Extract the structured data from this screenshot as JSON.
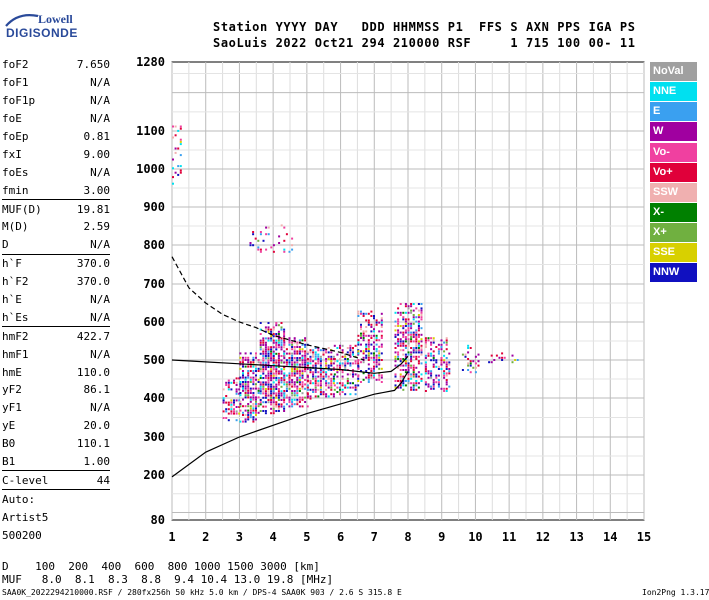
{
  "logo": {
    "line1": "Lowell",
    "line2": "DIGISONDE"
  },
  "header": {
    "row1": "Station YYYY DAY   DDD HHMMSS P1  FFS S AXN PPS IGA PS",
    "row2": "SaoLuis 2022 Oct21 294 210000 RSF     1 715 100 00- 11"
  },
  "params": [
    {
      "k": "foF2",
      "v": "7.650"
    },
    {
      "k": "foF1",
      "v": "N/A"
    },
    {
      "k": "foF1p",
      "v": "N/A"
    },
    {
      "k": "foE",
      "v": "N/A"
    },
    {
      "k": "foEp",
      "v": "0.81"
    },
    {
      "k": "fxI",
      "v": "9.00"
    },
    {
      "k": "foEs",
      "v": "N/A"
    },
    {
      "k": "fmin",
      "v": "3.00"
    },
    {
      "k": "MUF(D)",
      "v": "19.81",
      "sep": true
    },
    {
      "k": "M(D)",
      "v": "2.59"
    },
    {
      "k": "D",
      "v": "N/A"
    },
    {
      "k": "h`F",
      "v": "370.0",
      "sep": true
    },
    {
      "k": "h`F2",
      "v": "370.0"
    },
    {
      "k": "h`E",
      "v": "N/A"
    },
    {
      "k": "h`Es",
      "v": "N/A"
    },
    {
      "k": "hmF2",
      "v": "422.7",
      "sep": true
    },
    {
      "k": "hmF1",
      "v": "N/A"
    },
    {
      "k": "hmE",
      "v": "110.0"
    },
    {
      "k": "yF2",
      "v": "86.1"
    },
    {
      "k": "yF1",
      "v": "N/A"
    },
    {
      "k": "yE",
      "v": "20.0"
    },
    {
      "k": "B0",
      "v": "110.1"
    },
    {
      "k": "B1",
      "v": "1.00"
    },
    {
      "k": "C-level",
      "v": "44",
      "sep": true
    },
    {
      "k": "Auto:",
      "v": "",
      "sep": true
    },
    {
      "k": "Artist5",
      "v": ""
    },
    {
      "k": "500200",
      "v": ""
    }
  ],
  "legend": [
    {
      "label": "NoVal",
      "color": "#a0a0a0"
    },
    {
      "label": "NNE",
      "color": "#00e0f0"
    },
    {
      "label": "E",
      "color": "#3aa0f0"
    },
    {
      "label": "W",
      "color": "#a000a0"
    },
    {
      "label": "Vo-",
      "color": "#f040a0"
    },
    {
      "label": "Vo+",
      "color": "#e0003a"
    },
    {
      "label": "SSW",
      "color": "#f0b0b0"
    },
    {
      "label": "X-",
      "color": "#008000"
    },
    {
      "label": "X+",
      "color": "#70b040"
    },
    {
      "label": "SSE",
      "color": "#d8d000"
    },
    {
      "label": "NNW",
      "color": "#1010c0"
    }
  ],
  "muf_table": {
    "row1": "D    100  200  400  600  800 1000 1500 3000 [km]",
    "row2": "MUF   8.0  8.1  8.3  8.8  9.4 10.4 13.0 19.8 [MHz]"
  },
  "footer": {
    "left": "SAA0K_2022294210000.RSF / 280fx256h 50 kHz 5.0 km / DPS-4 SAA0K 903 / 2.6 S 315.8 E",
    "right": "Ion2Png 1.3.17"
  },
  "chart_data": {
    "type": "scatter",
    "xlabel": "",
    "ylabel": "",
    "xlim": [
      1,
      15
    ],
    "ylim": [
      80,
      1280
    ],
    "y_axis_scale": "nonlinear (compressed above ~500 km)",
    "x_ticks": [
      1,
      2,
      3,
      4,
      5,
      6,
      7,
      8,
      9,
      10,
      11,
      12,
      13,
      14,
      15
    ],
    "y_ticks": [
      80,
      200,
      300,
      400,
      500,
      600,
      700,
      800,
      900,
      1000,
      1100,
      1280
    ],
    "grid": true,
    "echo_clusters": [
      {
        "f": [
          2.5,
          3.0
        ],
        "h": [
          340,
          460
        ],
        "density": 0.5
      },
      {
        "f": [
          3.0,
          3.6
        ],
        "h": [
          340,
          520
        ],
        "density": 0.8
      },
      {
        "f": [
          3.6,
          4.3
        ],
        "h": [
          360,
          600
        ],
        "density": 0.85
      },
      {
        "f": [
          4.3,
          5.0
        ],
        "h": [
          380,
          560
        ],
        "density": 0.8
      },
      {
        "f": [
          5.0,
          5.8
        ],
        "h": [
          400,
          540
        ],
        "density": 0.7
      },
      {
        "f": [
          5.8,
          6.5
        ],
        "h": [
          410,
          540
        ],
        "density": 0.6
      },
      {
        "f": [
          6.5,
          7.2
        ],
        "h": [
          440,
          630
        ],
        "density": 0.6
      },
      {
        "f": [
          7.6,
          8.4
        ],
        "h": [
          420,
          650
        ],
        "density": 0.7
      },
      {
        "f": [
          8.5,
          9.2
        ],
        "h": [
          420,
          560
        ],
        "density": 0.55
      },
      {
        "f": [
          9.6,
          10.1
        ],
        "h": [
          470,
          540
        ],
        "density": 0.3
      },
      {
        "f": [
          10.3,
          11.3
        ],
        "h": [
          495,
          520
        ],
        "density": 0.3
      },
      {
        "f": [
          3.3,
          4.6
        ],
        "h": [
          780,
          860
        ],
        "density": 0.15
      },
      {
        "f": [
          1.0,
          1.3
        ],
        "h": [
          960,
          1120
        ],
        "density": 0.2
      }
    ],
    "trace_lower": [
      [
        1,
        195
      ],
      [
        2,
        260
      ],
      [
        3,
        300
      ],
      [
        4,
        330
      ],
      [
        5,
        360
      ],
      [
        6,
        385
      ],
      [
        7,
        410
      ],
      [
        7.6,
        420
      ],
      [
        7.8,
        440
      ],
      [
        8,
        470
      ]
    ],
    "trace_upper": [
      [
        1,
        500
      ],
      [
        2,
        495
      ],
      [
        3,
        490
      ],
      [
        4,
        485
      ],
      [
        5,
        480
      ],
      [
        6,
        475
      ],
      [
        7,
        465
      ],
      [
        7.5,
        470
      ],
      [
        7.8,
        490
      ],
      [
        8.0,
        510
      ]
    ],
    "trace_dashed": [
      [
        1,
        770
      ],
      [
        1.5,
        690
      ],
      [
        2,
        650
      ],
      [
        2.5,
        620
      ],
      [
        3,
        600
      ],
      [
        3.5,
        585
      ],
      [
        4,
        565
      ],
      [
        5,
        540
      ],
      [
        6,
        520
      ],
      [
        6.7,
        500
      ]
    ]
  }
}
